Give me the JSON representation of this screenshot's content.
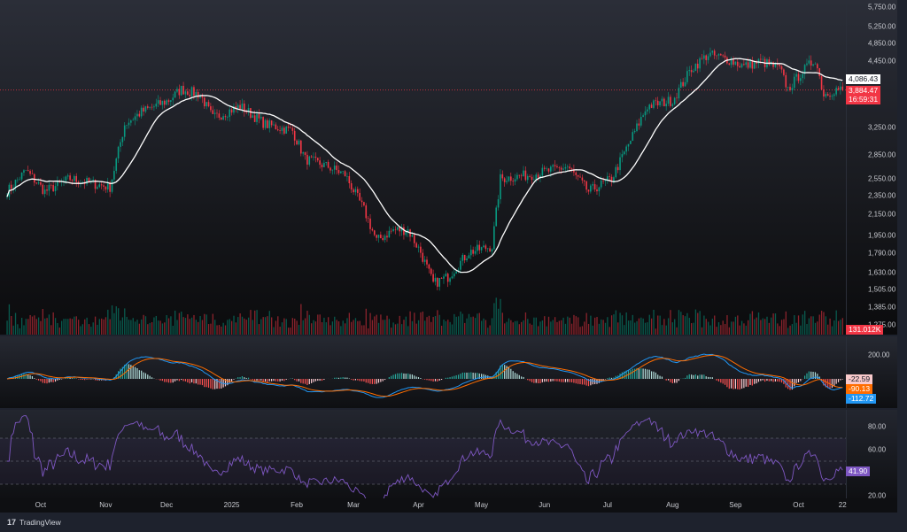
{
  "colors": {
    "up": "#089981",
    "down": "#f23645",
    "ma": "#ffffff",
    "macd": "#2962ff",
    "signal": "#ff6d00",
    "rsi": "#7e57c2"
  },
  "chart_data": {
    "type": "candlestick",
    "price_axis": {
      "scale": "log",
      "ticks": [
        "5,750.00",
        "5,250.00",
        "4,850.00",
        "4,450.00",
        "3,250.00",
        "2,850.00",
        "2,550.00",
        "2,350.00",
        "2,150.00",
        "1,950.00",
        "1,790.00",
        "1,630.00",
        "1,505.00",
        "1,385.00",
        "1,275.00"
      ],
      "tick_values": [
        5750,
        5250,
        4850,
        4450,
        3250,
        2850,
        2550,
        2350,
        2150,
        1950,
        1790,
        1630,
        1505,
        1385,
        1275
      ]
    },
    "time_axis": {
      "labels": [
        "Oct",
        "Nov",
        "Dec",
        "2025",
        "Feb",
        "Mar",
        "Apr",
        "May",
        "Jun",
        "Jul",
        "Aug",
        "Sep",
        "Oct",
        "22"
      ],
      "label_days": [
        16,
        47,
        76,
        107,
        138,
        165,
        196,
        226,
        256,
        286,
        317,
        347,
        377,
        398
      ]
    },
    "price_path_day_close": [
      [
        0,
        2400
      ],
      [
        9,
        2650
      ],
      [
        18,
        2400
      ],
      [
        30,
        2550
      ],
      [
        39,
        2500
      ],
      [
        49,
        2450
      ],
      [
        56,
        3300
      ],
      [
        64,
        3500
      ],
      [
        77,
        3700
      ],
      [
        83,
        3900
      ],
      [
        92,
        3800
      ],
      [
        98,
        3400
      ],
      [
        111,
        3600
      ],
      [
        123,
        3300
      ],
      [
        136,
        3200
      ],
      [
        142,
        2800
      ],
      [
        153,
        2700
      ],
      [
        161,
        2600
      ],
      [
        170,
        2200
      ],
      [
        176,
        1900
      ],
      [
        184,
        2000
      ],
      [
        191,
        2000
      ],
      [
        197,
        1800
      ],
      [
        203,
        1550
      ],
      [
        210,
        1600
      ],
      [
        220,
        1800
      ],
      [
        231,
        1850
      ],
      [
        235,
        2550
      ],
      [
        250,
        2600
      ],
      [
        267,
        2700
      ],
      [
        277,
        2400
      ],
      [
        288,
        2550
      ],
      [
        296,
        3000
      ],
      [
        305,
        3600
      ],
      [
        317,
        3700
      ],
      [
        326,
        4300
      ],
      [
        334,
        4600
      ],
      [
        343,
        4500
      ],
      [
        351,
        4350
      ],
      [
        359,
        4450
      ],
      [
        368,
        4300
      ],
      [
        372,
        3900
      ],
      [
        378,
        4200
      ],
      [
        385,
        4500
      ],
      [
        389,
        3800
      ],
      [
        395,
        3900
      ],
      [
        398,
        3884
      ]
    ],
    "ma_last": "4,086.43",
    "last_price": "3,884.47",
    "countdown": "16:59:31",
    "volume_last": "131.012K",
    "macd": {
      "axis_ticks": [
        "200.00"
      ],
      "histogram": "-22.59",
      "macd": "-90.13",
      "signal": "-112.72"
    },
    "rsi": {
      "axis_ticks": [
        "80.00",
        "60.00",
        "20.00"
      ],
      "bands": [
        70,
        50,
        30
      ],
      "value": "41.90"
    }
  },
  "footer": {
    "brand": "TradingView"
  }
}
